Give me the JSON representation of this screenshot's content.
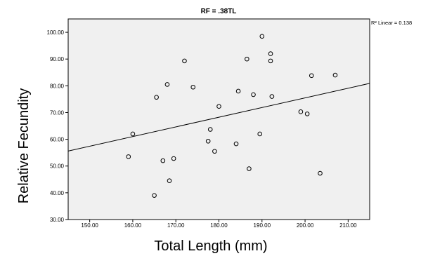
{
  "chart_data": {
    "type": "scatter",
    "title": "RF = .38TL",
    "xlabel": "Total Length (mm)",
    "ylabel": "Relative Fecundity",
    "xlim": [
      145,
      215
    ],
    "ylim": [
      30,
      105
    ],
    "xticks": [
      "150.00",
      "160.00",
      "170.00",
      "180.00",
      "190.00",
      "200.00",
      "210.00"
    ],
    "xtick_values": [
      150,
      160,
      170,
      180,
      190,
      200,
      210
    ],
    "yticks": [
      "30.00",
      "40.00",
      "50.00",
      "60.00",
      "70.00",
      "80.00",
      "90.00",
      "100.00"
    ],
    "ytick_values": [
      30,
      40,
      50,
      60,
      70,
      80,
      90,
      100
    ],
    "grid": false,
    "fit_line_label": "R² Linear = 0.138",
    "fit_line": {
      "x": [
        145,
        215
      ],
      "y": [
        55.6,
        80.9
      ]
    },
    "series": [
      {
        "x": [
          159.0,
          160.0,
          165.0,
          165.5,
          167.0,
          168.0,
          168.5,
          169.5,
          172.0,
          174.0,
          177.5,
          178.0,
          179.0,
          180.0,
          184.0,
          184.5,
          186.5,
          187.0,
          188.0,
          189.5,
          190.0,
          192.0,
          192.0,
          192.3,
          199.0,
          200.5,
          201.5,
          203.5,
          207.0
        ],
        "y": [
          53.5,
          62.0,
          39.0,
          75.7,
          52.0,
          80.5,
          44.5,
          52.8,
          89.3,
          79.5,
          59.3,
          63.7,
          55.5,
          72.3,
          58.3,
          78.0,
          90.0,
          49.0,
          76.7,
          62.0,
          98.5,
          92.0,
          89.3,
          76.0,
          70.3,
          69.5,
          83.8,
          47.3,
          84.0
        ]
      }
    ]
  }
}
